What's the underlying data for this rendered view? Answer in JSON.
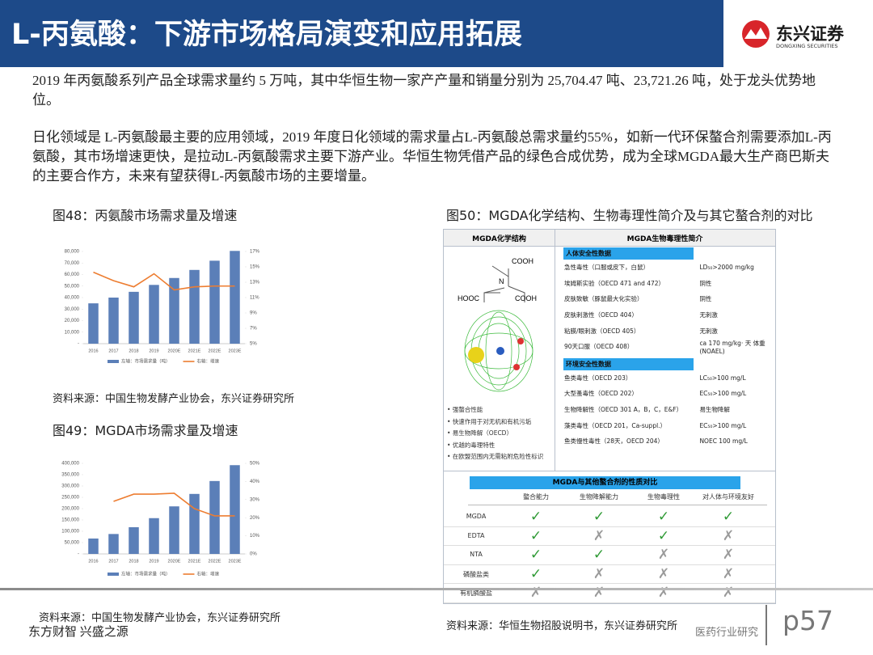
{
  "header": {
    "title": "L-丙氨酸：下游市场格局演变和应用拓展",
    "logo_name": "东兴证券",
    "logo_subtitle": "DONGXING SECURITIES"
  },
  "paragraphs": [
    "2019 年丙氨酸系列产品全球需求量约 5 万吨，其中华恒生物一家产产量和销量分别为 25,704.47 吨、23,721.26 吨，处于龙头优势地位。",
    "日化领域是 L-丙氨酸最主要的应用领域，2019 年度日化领域的需求量占L-丙氨酸总需求量约55%，如新一代环保螯合剂需要添加L-丙氨酸，其市场增速更快，是拉动L-丙氨酸需求主要下游产业。华恒生物凭借产品的绿色合成优势，成为全球MGDA最大生产商巴斯夫的主要合作方，未来有望获得L-丙氨酸市场的主要增量。"
  ],
  "chart_data": [
    {
      "type": "bar",
      "title": "图48：丙氨酸市场需求量及增速",
      "categories": [
        "2016",
        "2017",
        "2018",
        "2019",
        "2020E",
        "2021E",
        "2022E",
        "2023E"
      ],
      "series": [
        {
          "name": "左轴：市场需求量（吨）",
          "type": "bar",
          "color": "#5b7fb8",
          "values": [
            35000,
            40000,
            45000,
            51000,
            57000,
            64000,
            72000,
            80500
          ]
        },
        {
          "name": "右轴：增速",
          "type": "line",
          "axis": "y2",
          "color": "#ed7d31",
          "values": [
            14.3,
            13.2,
            12.4,
            14.1,
            12,
            12.4,
            12.5,
            12.5
          ]
        }
      ],
      "ylim": [
        0,
        80000
      ],
      "yticks": [
        {
          "value": 0,
          "label": "-"
        },
        {
          "value": 10000,
          "label": "10,000"
        },
        {
          "value": 20000,
          "label": "20,000"
        },
        {
          "value": 30000,
          "label": "30,000"
        },
        {
          "value": 40000,
          "label": "40,000"
        },
        {
          "value": 50000,
          "label": "50,000"
        },
        {
          "value": 60000,
          "label": "60,000"
        },
        {
          "value": 70000,
          "label": "70,000"
        },
        {
          "value": 80000,
          "label": "80,000"
        }
      ],
      "y2lim": [
        5,
        17
      ],
      "y2ticks": [
        {
          "value": 5,
          "label": "5%"
        },
        {
          "value": 7,
          "label": "7%"
        },
        {
          "value": 9,
          "label": "9%"
        },
        {
          "value": 11,
          "label": "11%"
        },
        {
          "value": 13,
          "label": "13%"
        },
        {
          "value": 15,
          "label": "15%"
        },
        {
          "value": 17,
          "label": "17%"
        }
      ],
      "grid": false
    },
    {
      "type": "bar",
      "title": "图49：MGDA市场需求量及增速",
      "categories": [
        "2016",
        "2017",
        "2018",
        "2019",
        "2020E",
        "2021E",
        "2022E",
        "2023E"
      ],
      "series": [
        {
          "name": "左轴：市场需求量（吨）",
          "type": "bar",
          "color": "#5b7fb8",
          "values": [
            68000,
            88000,
            118000,
            158000,
            210000,
            265000,
            322000,
            392000
          ]
        },
        {
          "name": "右轴：增速",
          "type": "line",
          "axis": "y2",
          "color": "#ed7d31",
          "values": [
            null,
            29,
            33,
            33,
            33.5,
            25,
            21,
            21
          ]
        }
      ],
      "ylim": [
        0,
        400000
      ],
      "yticks": [
        {
          "value": 0,
          "label": "-"
        },
        {
          "value": 50000,
          "label": "50,000"
        },
        {
          "value": 100000,
          "label": "100,000"
        },
        {
          "value": 150000,
          "label": "150,000"
        },
        {
          "value": 200000,
          "label": "200,000"
        },
        {
          "value": 250000,
          "label": "250,000"
        },
        {
          "value": 300000,
          "label": "300,000"
        },
        {
          "value": 350000,
          "label": "350,000"
        },
        {
          "value": 400000,
          "label": "400,000"
        }
      ],
      "y2lim": [
        0,
        50
      ],
      "y2ticks": [
        {
          "value": 0,
          "label": "0%"
        },
        {
          "value": 10,
          "label": "10%"
        },
        {
          "value": 20,
          "label": "20%"
        },
        {
          "value": 30,
          "label": "30%"
        },
        {
          "value": 40,
          "label": "40%"
        },
        {
          "value": 50,
          "label": "50%"
        }
      ],
      "grid": false
    }
  ],
  "chart_sources": [
    "资料来源：中国生物发酵产业协会，东兴证券研究所",
    "资料来源：中国生物发酵产业协会，东兴证券研究所"
  ],
  "figure50": {
    "title": "图50：MGDA化学结构、生物毒理性简介及与其它螯合剂的对比",
    "structure_header": "MGDA化学结构",
    "toxicity_header": "MGDA生物毒理性简介",
    "structure_labels": [
      "COOH",
      "N",
      "HOOC",
      "COOH"
    ],
    "toxicity_sections": [
      {
        "title": "人体安全性数据",
        "rows": [
          [
            "急性毒性（口服或皮下，白鼠）",
            "LD₅₀>2000 mg/kg"
          ],
          [
            "埃姆斯实验（OECD 471 and 472）",
            "阴性"
          ],
          [
            "皮肤致敏（豚鼠最大化实验）",
            "阴性"
          ],
          [
            "皮肤刺激性（OECD 404）",
            "无刺激"
          ],
          [
            "粘膜/眼刺激（OECD 405）",
            "无刺激"
          ],
          [
            "90天口服（OECD 408）",
            "ca 170 mg/kg· 天 体重 (NOAEL)"
          ]
        ]
      },
      {
        "title": "环境安全性数据",
        "rows": [
          [
            "鱼类毒性（OECD 203）",
            "LC₅₀>100 mg/L"
          ],
          [
            "大型蚤毒性（OECD 202）",
            "EC₅₀>100 mg/L"
          ],
          [
            "生物降解性（OECD 301 A，B，C，E&F）",
            "易生物降解"
          ],
          [
            "藻类毒性（OECD 201，Ca-suppl.）",
            "EC₅₀>100 mg/L"
          ],
          [
            "鱼类慢性毒性（28天，OECD 204）",
            "NOEC 100 mg/L"
          ]
        ]
      }
    ],
    "features": [
      "强螯合性能",
      "快速作用于对无机和有机污垢",
      "易生物降解（OECD）",
      "优越的毒理特性",
      "在欧盟范围内无需粘附危险性标识"
    ],
    "comparison": {
      "title": "MGDA与其他螯合剂的性质对比",
      "columns": [
        "螯合能力",
        "生物降解能力",
        "生物毒理性",
        "对人体与环境友好"
      ],
      "rows": [
        {
          "name": "MGDA",
          "marks": [
            "✓",
            "✓",
            "✓",
            "✓"
          ]
        },
        {
          "name": "EDTA",
          "marks": [
            "✓",
            "✗",
            "✓",
            "✗"
          ]
        },
        {
          "name": "NTA",
          "marks": [
            "✓",
            "✓",
            "✗",
            "✗"
          ]
        },
        {
          "name": "磷酸盐类",
          "marks": [
            "✓",
            "✗",
            "✗",
            "✗"
          ]
        },
        {
          "name": "有机膦酸盐",
          "marks": [
            "✗",
            "✗",
            "✗",
            "✗"
          ]
        }
      ]
    },
    "source": "资料来源：华恒生物招股说明书，东兴证券研究所"
  },
  "footer": {
    "slogan": "东方财智 兴盛之源",
    "department": "医药行业研究",
    "page": "p57"
  }
}
